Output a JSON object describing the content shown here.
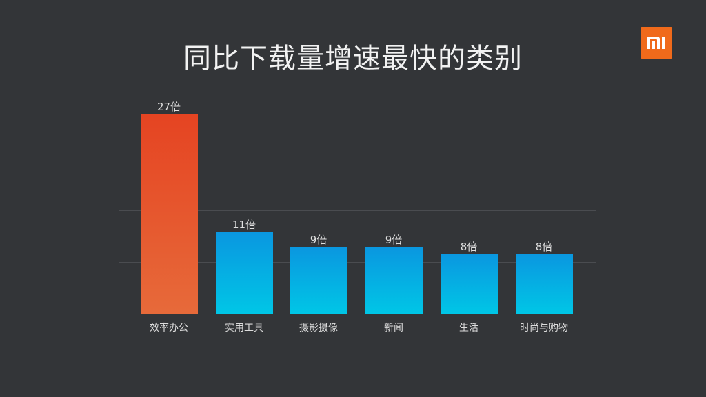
{
  "slide": {
    "title": "同比下载量增速最快的类别",
    "logo": {
      "icon": "mi-logo-icon",
      "text": "mi",
      "color": "#f06a1b"
    }
  },
  "colors": {
    "background": "#333538",
    "highlight_bar_top": "#e54422",
    "highlight_bar_bottom": "#e76a3a",
    "bar_top": "#0a97e0",
    "bar_bottom": "#00c6e6",
    "gridline": "#4a4c50"
  },
  "chart_data": {
    "type": "bar",
    "title": "同比下载量增速最快的类别",
    "xlabel": "",
    "ylabel": "",
    "categories": [
      "效率办公",
      "实用工具",
      "摄影摄像",
      "新闻",
      "生活",
      "时尚与购物"
    ],
    "values": [
      27,
      11,
      9,
      9,
      8,
      8
    ],
    "value_labels": [
      "27倍",
      "11倍",
      "9倍",
      "9倍",
      "8倍",
      "8倍"
    ],
    "unit": "倍",
    "ylim": [
      0,
      28
    ],
    "grid": true,
    "gridlines": 5,
    "legend": null,
    "highlight_index": 0
  }
}
